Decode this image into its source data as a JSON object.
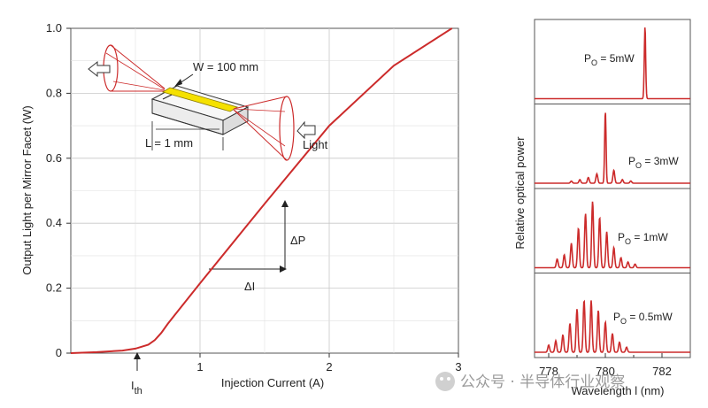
{
  "chart_data": [
    {
      "type": "line",
      "xlabel": "Injection Current (A)",
      "ylabel": "Output Light per Mirror Facet (W)",
      "xlim": [
        0,
        3
      ],
      "ylim": [
        0,
        1.0
      ],
      "x_ticks": [
        "1",
        "2",
        "3"
      ],
      "y_ticks": [
        "0",
        "0.2",
        "0.4",
        "0.6",
        "0.8",
        "1.0"
      ],
      "grid": true,
      "series": [
        {
          "color": "#cc2b2b",
          "x": [
            0,
            0.2,
            0.4,
            0.5,
            0.6,
            0.65,
            0.7,
            0.75,
            0.8,
            1.0,
            1.5,
            2.0,
            2.5,
            2.95
          ],
          "y": [
            0.0,
            0.003,
            0.008,
            0.014,
            0.026,
            0.04,
            0.062,
            0.09,
            0.115,
            0.215,
            0.46,
            0.7,
            0.885,
            1.0
          ]
        }
      ],
      "annotations": {
        "threshold": "I",
        "threshold_sub": "th",
        "delta_p": "ΔP",
        "delta_i": "ΔI",
        "width_label": "W = 100 mm",
        "length_label": "L = 1 mm",
        "light_label": "Light"
      }
    },
    {
      "type": "line",
      "xlabel": "Wavelength l (nm)",
      "ylabel": "Relative optical power",
      "xlim": [
        777.5,
        783
      ],
      "x_ticks": [
        "778",
        "780",
        "782"
      ],
      "panels": [
        {
          "label": "P",
          "label_sub": "O",
          "label_value": " = 5mW",
          "peaks": [
            {
              "x": 781.4,
              "a": 1.0
            }
          ]
        },
        {
          "label": "P",
          "label_sub": "O",
          "label_value": " = 3mW",
          "peaks": [
            {
              "x": 780.0,
              "a": 1.0
            },
            {
              "x": 780.3,
              "a": 0.18
            },
            {
              "x": 779.7,
              "a": 0.13
            },
            {
              "x": 779.4,
              "a": 0.08
            },
            {
              "x": 779.1,
              "a": 0.05
            },
            {
              "x": 780.6,
              "a": 0.05
            },
            {
              "x": 778.8,
              "a": 0.03
            },
            {
              "x": 780.9,
              "a": 0.03
            }
          ]
        },
        {
          "label": "P",
          "label_sub": "O",
          "label_value": " = 1mW",
          "peaks": [
            {
              "x": 778.3,
              "a": 0.12
            },
            {
              "x": 778.55,
              "a": 0.18
            },
            {
              "x": 778.8,
              "a": 0.34
            },
            {
              "x": 779.05,
              "a": 0.55
            },
            {
              "x": 779.3,
              "a": 0.75
            },
            {
              "x": 779.55,
              "a": 0.92
            },
            {
              "x": 779.8,
              "a": 0.7
            },
            {
              "x": 780.05,
              "a": 0.5
            },
            {
              "x": 780.3,
              "a": 0.28
            },
            {
              "x": 780.55,
              "a": 0.14
            },
            {
              "x": 780.8,
              "a": 0.08
            },
            {
              "x": 781.05,
              "a": 0.05
            }
          ]
        },
        {
          "label": "P",
          "label_sub": "O",
          "label_value": " = 0.5mW",
          "peaks": [
            {
              "x": 778.0,
              "a": 0.1
            },
            {
              "x": 778.25,
              "a": 0.16
            },
            {
              "x": 778.5,
              "a": 0.24
            },
            {
              "x": 778.75,
              "a": 0.4
            },
            {
              "x": 779.0,
              "a": 0.6
            },
            {
              "x": 779.25,
              "a": 0.72
            },
            {
              "x": 779.5,
              "a": 0.72
            },
            {
              "x": 779.75,
              "a": 0.58
            },
            {
              "x": 780.0,
              "a": 0.42
            },
            {
              "x": 780.25,
              "a": 0.26
            },
            {
              "x": 780.5,
              "a": 0.14
            },
            {
              "x": 780.75,
              "a": 0.07
            }
          ]
        }
      ]
    }
  ],
  "watermark": "公众号 · 半导体行业观察"
}
